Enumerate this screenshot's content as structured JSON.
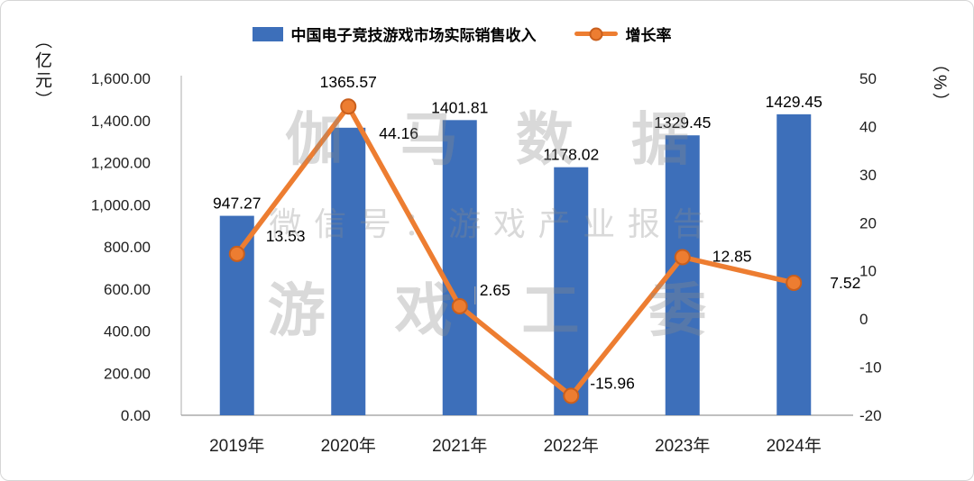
{
  "legend": {
    "bar_label": "中国电子竞技游戏市场实际销售收入",
    "line_label": "增长率"
  },
  "watermark": {
    "line1": "伽马数据",
    "line2": "微信号：游戏产业报告",
    "line3": "游戏工委"
  },
  "chart_data": {
    "type": "bar+line",
    "categories": [
      "2019年",
      "2020年",
      "2021年",
      "2022年",
      "2023年",
      "2024年"
    ],
    "series": [
      {
        "name": "中国电子竞技游戏市场实际销售收入",
        "type": "bar",
        "axis": "left",
        "color": "#3D6FBA",
        "values": [
          947.27,
          1365.57,
          1401.81,
          1178.02,
          1329.45,
          1429.45
        ],
        "labels": [
          "947.27",
          "1365.57",
          "1401.81",
          "1178.02",
          "1329.45",
          "1429.45"
        ]
      },
      {
        "name": "增长率",
        "type": "line",
        "axis": "right",
        "color": "#ED7D31",
        "marker_stroke": "#c95f1d",
        "values": [
          13.53,
          44.16,
          2.65,
          -15.96,
          12.85,
          7.52
        ],
        "labels": [
          "13.53",
          "44.16",
          "2.65",
          "-15.96",
          "12.85",
          "7.52"
        ]
      }
    ],
    "left_axis": {
      "unit": "（亿元）",
      "min": 0,
      "max": 1600,
      "step": 200,
      "tick_labels": [
        "1,600.00",
        "1,400.00",
        "1,200.00",
        "1,000.00",
        "800.00",
        "600.00",
        "400.00",
        "200.00",
        "0.00"
      ]
    },
    "right_axis": {
      "unit": "（%）",
      "min": -20,
      "max": 50,
      "step": 10,
      "tick_labels": [
        "50",
        "40",
        "30",
        "20",
        "10",
        "0",
        "-10",
        "-20"
      ]
    },
    "grid": "off",
    "legend_position": "top"
  }
}
